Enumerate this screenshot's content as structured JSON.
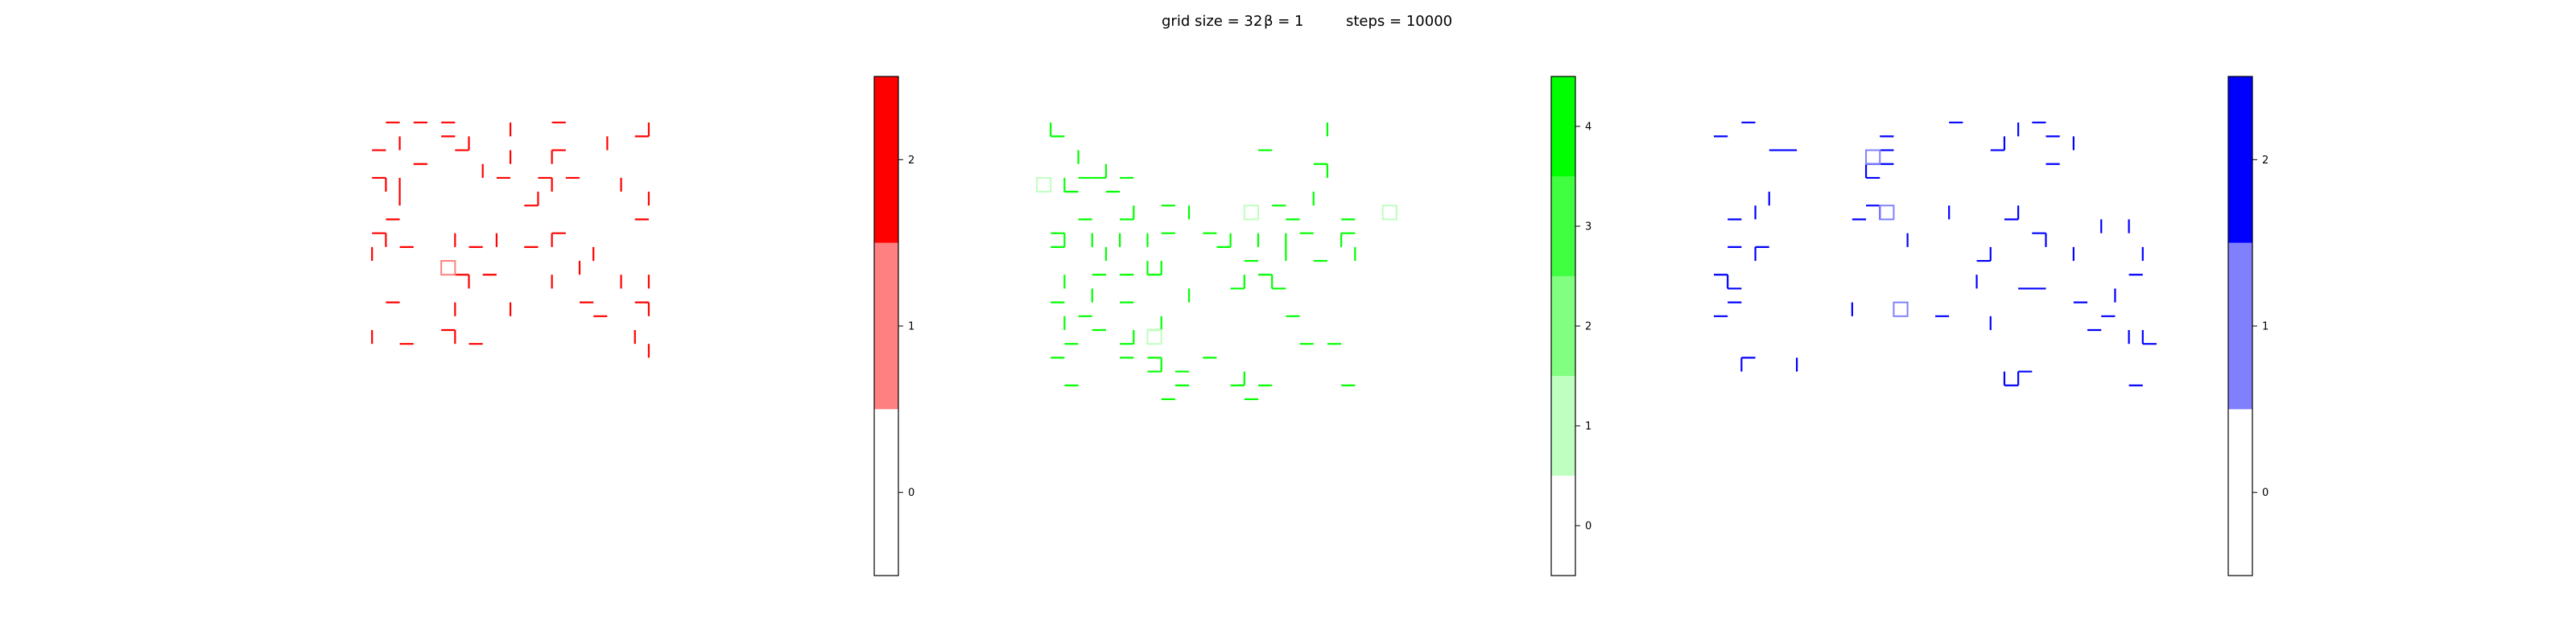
{
  "figure": {
    "title_parts": {
      "grid": "grid size = 32",
      "beta": "β = 1",
      "steps": "steps = 10000"
    }
  },
  "chart_data": [
    {
      "type": "heatmap",
      "name": "red lattice",
      "grid_size": 32,
      "color": "#ff0000",
      "levels": [
        0,
        1,
        2
      ],
      "level_colors": [
        "#ffffff",
        "#ff8080",
        "#ff0000"
      ],
      "colorbar_ticks": [
        "0",
        "1",
        "2"
      ],
      "segments": [
        [
          2,
          1,
          3,
          1
        ],
        [
          4,
          1,
          5,
          1
        ],
        [
          6,
          1,
          7,
          1
        ],
        [
          11,
          1,
          11,
          2
        ],
        [
          14,
          1,
          15,
          1
        ],
        [
          21,
          1,
          21,
          2
        ],
        [
          6,
          2,
          7,
          2
        ],
        [
          8,
          2,
          8,
          3
        ],
        [
          20,
          2,
          21,
          2
        ],
        [
          1,
          3,
          2,
          3
        ],
        [
          3,
          2,
          3,
          3
        ],
        [
          18,
          2,
          18,
          3
        ],
        [
          14,
          3,
          15,
          3
        ],
        [
          4,
          4,
          5,
          4
        ],
        [
          7,
          3,
          8,
          3
        ],
        [
          11,
          3,
          11,
          4
        ],
        [
          9,
          4,
          9,
          5
        ],
        [
          14,
          3,
          14,
          4
        ],
        [
          1,
          5,
          2,
          5
        ],
        [
          2,
          5,
          2,
          6
        ],
        [
          10,
          5,
          11,
          5
        ],
        [
          13,
          5,
          14,
          5
        ],
        [
          14,
          5,
          14,
          6
        ],
        [
          15,
          5,
          16,
          5
        ],
        [
          19,
          5,
          19,
          6
        ],
        [
          3,
          5,
          3,
          7
        ],
        [
          12,
          7,
          13,
          7
        ],
        [
          13,
          6,
          13,
          7
        ],
        [
          21,
          6,
          21,
          7
        ],
        [
          20,
          8,
          21,
          8
        ],
        [
          2,
          8,
          3,
          8
        ],
        [
          1,
          9,
          2,
          9
        ],
        [
          2,
          9,
          2,
          10
        ],
        [
          14,
          9,
          15,
          9
        ],
        [
          14,
          9,
          14,
          10
        ],
        [
          3,
          10,
          4,
          10
        ],
        [
          7,
          9,
          7,
          10
        ],
        [
          8,
          10,
          9,
          10
        ],
        [
          10,
          9,
          10,
          10
        ],
        [
          12,
          10,
          13,
          10
        ],
        [
          1,
          10,
          1,
          11
        ],
        [
          17,
          10,
          17,
          11
        ],
        [
          16,
          11,
          16,
          12
        ],
        [
          7,
          12,
          8,
          12
        ],
        [
          8,
          12,
          8,
          13
        ],
        [
          9,
          12,
          10,
          12
        ],
        [
          14,
          12,
          14,
          13
        ],
        [
          19,
          12,
          19,
          13
        ],
        [
          21,
          12,
          21,
          13
        ],
        [
          2,
          14,
          3,
          14
        ],
        [
          7,
          14,
          7,
          15
        ],
        [
          11,
          14,
          11,
          15
        ],
        [
          16,
          14,
          17,
          14
        ],
        [
          17,
          15,
          18,
          15
        ],
        [
          20,
          14,
          21,
          14
        ],
        [
          21,
          14,
          21,
          15
        ],
        [
          1,
          16,
          1,
          17
        ],
        [
          3,
          17,
          4,
          17
        ],
        [
          6,
          16,
          7,
          16
        ],
        [
          7,
          16,
          7,
          17
        ],
        [
          8,
          17,
          9,
          17
        ],
        [
          20,
          16,
          20,
          17
        ],
        [
          21,
          17,
          21,
          18
        ]
      ],
      "squares": [
        [
          6,
          11
        ]
      ]
    },
    {
      "type": "heatmap",
      "name": "green lattice",
      "grid_size": 32,
      "color": "#00ff00",
      "levels": [
        0,
        1,
        2,
        3,
        4
      ],
      "level_colors": [
        "#ffffff",
        "#bfffbf",
        "#80ff80",
        "#40ff40",
        "#00ff00"
      ],
      "colorbar_ticks": [
        "0",
        "1",
        "2",
        "3",
        "4"
      ],
      "segments": [
        [
          21,
          1,
          21,
          2
        ],
        [
          1,
          2,
          2,
          2
        ],
        [
          1,
          2,
          1,
          1
        ],
        [
          16,
          3,
          17,
          3
        ],
        [
          3,
          3,
          3,
          4
        ],
        [
          5,
          4,
          5,
          5
        ],
        [
          20,
          4,
          21,
          4
        ],
        [
          21,
          4,
          21,
          5
        ],
        [
          3,
          5,
          4,
          5
        ],
        [
          4,
          5,
          5,
          5
        ],
        [
          6,
          5,
          7,
          5
        ],
        [
          2,
          5,
          2,
          6
        ],
        [
          5,
          6,
          6,
          6
        ],
        [
          20,
          6,
          20,
          7
        ],
        [
          2,
          6,
          3,
          6
        ],
        [
          7,
          7,
          7,
          8
        ],
        [
          9,
          7,
          10,
          7
        ],
        [
          11,
          7,
          11,
          8
        ],
        [
          17,
          7,
          18,
          7
        ],
        [
          3,
          8,
          4,
          8
        ],
        [
          6,
          8,
          7,
          8
        ],
        [
          18,
          8,
          19,
          8
        ],
        [
          22,
          8,
          23,
          8
        ],
        [
          22,
          9,
          23,
          9
        ],
        [
          1,
          9,
          2,
          9
        ],
        [
          2,
          9,
          2,
          10
        ],
        [
          4,
          9,
          4,
          10
        ],
        [
          6,
          9,
          6,
          10
        ],
        [
          8,
          9,
          8,
          10
        ],
        [
          9,
          9,
          10,
          9
        ],
        [
          12,
          9,
          13,
          9
        ],
        [
          14,
          9,
          14,
          10
        ],
        [
          16,
          9,
          16,
          10
        ],
        [
          18,
          9,
          18,
          11
        ],
        [
          19,
          9,
          20,
          9
        ],
        [
          22,
          9,
          22,
          10
        ],
        [
          1,
          10,
          2,
          10
        ],
        [
          5,
          10,
          5,
          11
        ],
        [
          8,
          11,
          8,
          12
        ],
        [
          13,
          10,
          14,
          10
        ],
        [
          15,
          11,
          16,
          11
        ],
        [
          20,
          11,
          21,
          11
        ],
        [
          23,
          10,
          23,
          11
        ],
        [
          2,
          12,
          2,
          13
        ],
        [
          4,
          12,
          5,
          12
        ],
        [
          6,
          12,
          7,
          12
        ],
        [
          8,
          12,
          9,
          12
        ],
        [
          9,
          11,
          9,
          12
        ],
        [
          16,
          12,
          17,
          12
        ],
        [
          17,
          12,
          17,
          13
        ],
        [
          11,
          13,
          11,
          14
        ],
        [
          14,
          13,
          15,
          13
        ],
        [
          15,
          13,
          15,
          12
        ],
        [
          17,
          13,
          18,
          13
        ],
        [
          1,
          14,
          2,
          14
        ],
        [
          4,
          13,
          4,
          14
        ],
        [
          6,
          14,
          7,
          14
        ],
        [
          3,
          15,
          4,
          15
        ],
        [
          2,
          15,
          2,
          16
        ],
        [
          9,
          15,
          9,
          16
        ],
        [
          18,
          15,
          19,
          15
        ],
        [
          4,
          16,
          5,
          16
        ],
        [
          7,
          16,
          7,
          17
        ],
        [
          8,
          16,
          9,
          16
        ],
        [
          2,
          17,
          3,
          17
        ],
        [
          8,
          18,
          9,
          18
        ],
        [
          12,
          18,
          13,
          18
        ],
        [
          6,
          17,
          7,
          17
        ],
        [
          19,
          17,
          20,
          17
        ],
        [
          21,
          17,
          22,
          17
        ],
        [
          1,
          18,
          2,
          18
        ],
        [
          6,
          18,
          7,
          18
        ],
        [
          9,
          18,
          9,
          19
        ],
        [
          10,
          19,
          11,
          19
        ],
        [
          2,
          20,
          3,
          20
        ],
        [
          8,
          19,
          9,
          19
        ],
        [
          10,
          20,
          11,
          20
        ],
        [
          14,
          20,
          15,
          20
        ],
        [
          15,
          19,
          15,
          20
        ],
        [
          16,
          20,
          17,
          20
        ],
        [
          9,
          21,
          10,
          21
        ],
        [
          15,
          21,
          16,
          21
        ],
        [
          22,
          20,
          23,
          20
        ]
      ],
      "squares": [
        [
          0,
          5
        ],
        [
          15,
          7
        ],
        [
          25,
          7
        ],
        [
          8,
          16
        ]
      ]
    },
    {
      "type": "heatmap",
      "name": "blue lattice",
      "grid_size": 32,
      "color": "#0000ff",
      "levels": [
        0,
        1,
        2
      ],
      "level_colors": [
        "#ffffff",
        "#8080ff",
        "#0000ff"
      ],
      "colorbar_ticks": [
        "0",
        "1",
        "2"
      ],
      "segments": [
        [
          2,
          1,
          3,
          1
        ],
        [
          17,
          1,
          18,
          1
        ],
        [
          22,
          1,
          22,
          2
        ],
        [
          23,
          1,
          24,
          1
        ],
        [
          0,
          2,
          1,
          2
        ],
        [
          12,
          2,
          13,
          2
        ],
        [
          20,
          3,
          21,
          3
        ],
        [
          21,
          2,
          21,
          3
        ],
        [
          24,
          2,
          25,
          2
        ],
        [
          26,
          2,
          26,
          3
        ],
        [
          4,
          3,
          6,
          3
        ],
        [
          12,
          3,
          13,
          3
        ],
        [
          12,
          4,
          13,
          4
        ],
        [
          24,
          4,
          25,
          4
        ],
        [
          11,
          4,
          12,
          4
        ],
        [
          11,
          4,
          11,
          5
        ],
        [
          11,
          5,
          12,
          5
        ],
        [
          4,
          6,
          4,
          7
        ],
        [
          3,
          7,
          3,
          8
        ],
        [
          11,
          7,
          12,
          7
        ],
        [
          12,
          7,
          12,
          8
        ],
        [
          17,
          7,
          17,
          8
        ],
        [
          22,
          7,
          22,
          8
        ],
        [
          1,
          8,
          2,
          8
        ],
        [
          10,
          8,
          11,
          8
        ],
        [
          21,
          8,
          22,
          8
        ],
        [
          28,
          8,
          28,
          9
        ],
        [
          30,
          8,
          30,
          9
        ],
        [
          1,
          10,
          2,
          10
        ],
        [
          3,
          10,
          4,
          10
        ],
        [
          3,
          10,
          3,
          11
        ],
        [
          14,
          9,
          14,
          10
        ],
        [
          23,
          9,
          24,
          9
        ],
        [
          24,
          9,
          24,
          10
        ],
        [
          20,
          10,
          20,
          11
        ],
        [
          26,
          10,
          26,
          11
        ],
        [
          31,
          10,
          31,
          11
        ],
        [
          19,
          11,
          20,
          11
        ],
        [
          30,
          12,
          31,
          12
        ],
        [
          0,
          12,
          1,
          12
        ],
        [
          1,
          12,
          1,
          13
        ],
        [
          1,
          13,
          2,
          13
        ],
        [
          19,
          12,
          19,
          13
        ],
        [
          22,
          13,
          24,
          13
        ],
        [
          29,
          13,
          29,
          14
        ],
        [
          1,
          14,
          2,
          14
        ],
        [
          10,
          14,
          10,
          15
        ],
        [
          16,
          15,
          17,
          15
        ],
        [
          20,
          15,
          20,
          16
        ],
        [
          26,
          14,
          27,
          14
        ],
        [
          28,
          15,
          29,
          15
        ],
        [
          0,
          15,
          1,
          15
        ],
        [
          27,
          16,
          28,
          16
        ],
        [
          30,
          16,
          30,
          17
        ],
        [
          31,
          17,
          32,
          17
        ],
        [
          31,
          16,
          31,
          17
        ],
        [
          2,
          18,
          3,
          18
        ],
        [
          2,
          18,
          2,
          19
        ],
        [
          6,
          18,
          6,
          19
        ],
        [
          21,
          19,
          21,
          20
        ],
        [
          21,
          20,
          22,
          20
        ],
        [
          22,
          19,
          23,
          19
        ],
        [
          22,
          19,
          22,
          20
        ],
        [
          30,
          20,
          31,
          20
        ]
      ],
      "squares": [
        [
          11,
          3
        ],
        [
          12,
          7
        ],
        [
          13,
          14
        ]
      ]
    }
  ]
}
